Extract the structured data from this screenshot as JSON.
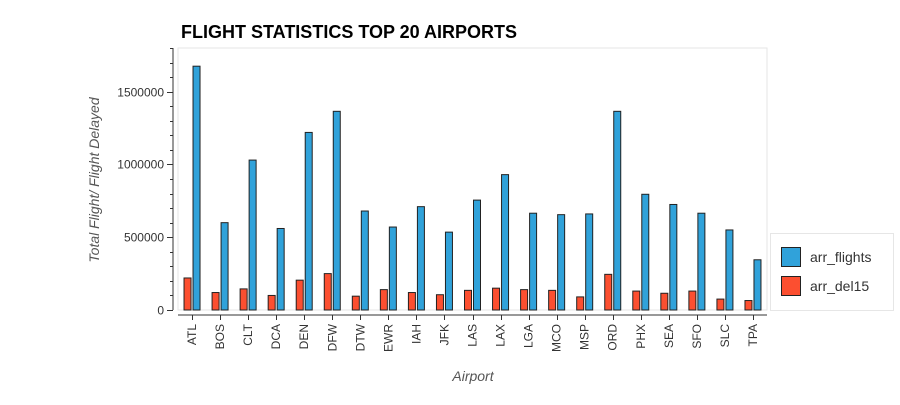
{
  "chart_data": {
    "type": "bar",
    "title": "FLIGHT STATISTICS TOP 20 AIRPORTS",
    "xlabel": "Airport",
    "ylabel": "Total Flight/ Flight Delayed",
    "categories": [
      "ATL",
      "BOS",
      "CLT",
      "DCA",
      "DEN",
      "DFW",
      "DTW",
      "EWR",
      "IAH",
      "JFK",
      "LAS",
      "LAX",
      "LGA",
      "MCO",
      "MSP",
      "ORD",
      "PHX",
      "SEA",
      "SFO",
      "SLC",
      "TPA"
    ],
    "series": [
      {
        "name": "arr_flights",
        "color": "#30a2da",
        "values": [
          1675000,
          600000,
          1030000,
          560000,
          1220000,
          1365000,
          680000,
          570000,
          710000,
          535000,
          755000,
          930000,
          665000,
          655000,
          660000,
          1365000,
          795000,
          725000,
          665000,
          550000,
          345000
        ]
      },
      {
        "name": "arr_del15",
        "color": "#fc4f30",
        "values": [
          220000,
          120000,
          145000,
          100000,
          205000,
          250000,
          95000,
          140000,
          120000,
          105000,
          135000,
          150000,
          140000,
          135000,
          90000,
          245000,
          130000,
          115000,
          130000,
          75000,
          65000
        ]
      }
    ],
    "ylim": [
      0,
      1800000
    ],
    "yticks": [
      0,
      500000,
      1000000,
      1500000
    ],
    "ytick_labels": [
      "0",
      "500000",
      "1000000",
      "1500000"
    ],
    "grid": false,
    "legend_position": "right"
  }
}
